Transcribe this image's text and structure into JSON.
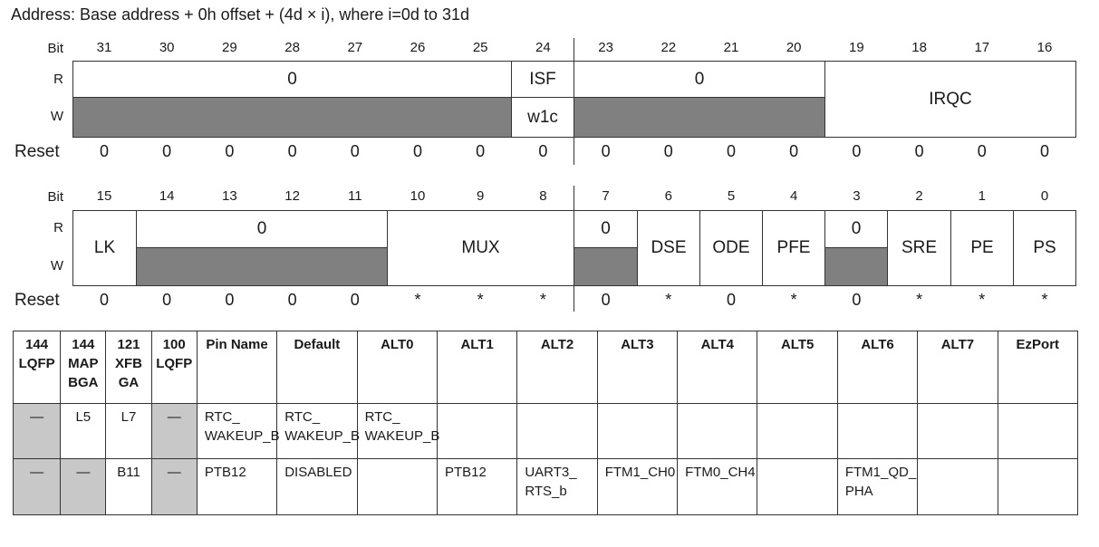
{
  "address": "Address: Base address + 0h offset + (4d × i), where i=0d to 31d",
  "labels": {
    "bit": "Bit",
    "r": "R",
    "w": "W",
    "reset": "Reset"
  },
  "reg_upper": {
    "bits": [
      "31",
      "30",
      "29",
      "28",
      "27",
      "26",
      "25",
      "24",
      "23",
      "22",
      "21",
      "20",
      "19",
      "18",
      "17",
      "16"
    ],
    "fields": {
      "zero_a": "0",
      "isf": "ISF",
      "w1c": "w1c",
      "zero_b": "0",
      "irqc": "IRQC"
    },
    "reset": [
      "0",
      "0",
      "0",
      "0",
      "0",
      "0",
      "0",
      "0",
      "0",
      "0",
      "0",
      "0",
      "0",
      "0",
      "0",
      "0"
    ]
  },
  "reg_lower": {
    "bits": [
      "15",
      "14",
      "13",
      "12",
      "11",
      "10",
      "9",
      "8",
      "7",
      "6",
      "5",
      "4",
      "3",
      "2",
      "1",
      "0"
    ],
    "fields": {
      "lk": "LK",
      "zero_a": "0",
      "mux": "MUX",
      "zero_b": "0",
      "dse": "DSE",
      "ode": "ODE",
      "pfe": "PFE",
      "zero_c": "0",
      "sre": "SRE",
      "pe": "PE",
      "ps": "PS"
    },
    "reset": [
      "0",
      "0",
      "0",
      "0",
      "0",
      "*",
      "*",
      "*",
      "0",
      "*",
      "0",
      "*",
      "0",
      "*",
      "*",
      "*"
    ]
  },
  "pin_table": {
    "headers": [
      [
        "144",
        "LQFP"
      ],
      [
        "144",
        "MAP",
        "BGA"
      ],
      [
        "121",
        "XFB",
        "GA"
      ],
      [
        "100",
        "LQFP"
      ],
      [
        "Pin Name"
      ],
      [
        "Default"
      ],
      [
        "ALT0"
      ],
      [
        "ALT1"
      ],
      [
        "ALT2"
      ],
      [
        "ALT3"
      ],
      [
        "ALT4"
      ],
      [
        "ALT5"
      ],
      [
        "ALT6"
      ],
      [
        "ALT7"
      ],
      [
        "EzPort"
      ]
    ],
    "rows": [
      [
        [
          "—"
        ],
        [
          "L5"
        ],
        [
          "L7"
        ],
        [
          "—"
        ],
        [
          "RTC_",
          "WAKEUP_B"
        ],
        [
          "RTC_",
          "WAKEUP_B"
        ],
        [
          "RTC_",
          "WAKEUP_B"
        ],
        [
          ""
        ],
        [
          ""
        ],
        [
          ""
        ],
        [
          ""
        ],
        [
          ""
        ],
        [
          ""
        ],
        [
          ""
        ],
        [
          ""
        ]
      ],
      [
        [
          "—"
        ],
        [
          "—"
        ],
        [
          "B11"
        ],
        [
          "—"
        ],
        [
          "PTB12"
        ],
        [
          "DISABLED"
        ],
        [
          ""
        ],
        [
          "PTB12"
        ],
        [
          "UART3_",
          "RTS_b"
        ],
        [
          "FTM1_CH0"
        ],
        [
          "FTM0_CH4"
        ],
        [
          ""
        ],
        [
          "FTM1_QD_",
          "PHA"
        ],
        [
          ""
        ],
        [
          ""
        ]
      ]
    ]
  }
}
